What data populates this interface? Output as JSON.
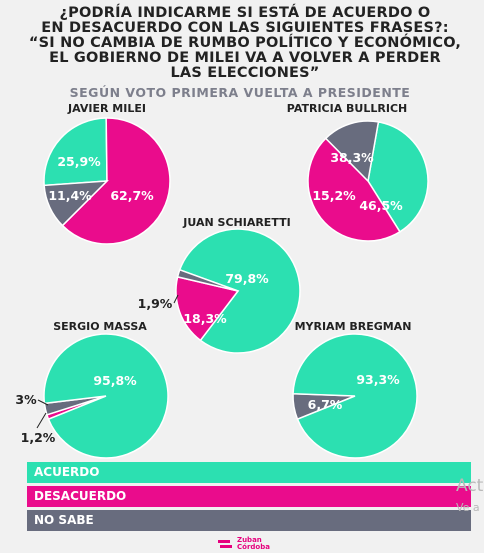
{
  "title_lines": [
    "¿PODRÍA INDICARME SI ESTÁ DE ACUERDO O",
    "EN DESACUERDO CON LAS SIGUIENTES FRASES?:",
    "“SI NO CAMBIA DE RUMBO POLÍTICO Y ECONÓMICO,",
    "EL GOBIERNO DE MILEI VA A VOLVER A PERDER",
    "LAS ELECCIONES”"
  ],
  "subtitle": "SEGÚN VOTO PRIMERA VUELTA A PRESIDENTE",
  "colors": {
    "acuerdo": "#2ce0b1",
    "desacuerdo": "#ea0c8c",
    "no_sabe": "#686c7e"
  },
  "legend": [
    {
      "key": "acuerdo",
      "label": "ACUERDO"
    },
    {
      "key": "desacuerdo",
      "label": "DESACUERDO"
    },
    {
      "key": "no_sabe",
      "label": "NO SABE"
    }
  ],
  "watermark": {
    "line1": "Act",
    "line2": "Ve a"
  },
  "logo": {
    "line1": "Zuban",
    "line2": "Córdoba"
  },
  "chart_data": {
    "type": "pie",
    "categories": [
      "ACUERDO",
      "DESACUERDO",
      "NO SABE"
    ],
    "pies": [
      {
        "name": "JAVIER MILEI",
        "values": [
          25.9,
          62.7,
          11.4
        ],
        "labels": [
          "25,9%",
          "62,7%",
          "11,4%"
        ]
      },
      {
        "name": "PATRICIA BULLRICH",
        "values": [
          38.3,
          46.5,
          15.2
        ],
        "labels": [
          "38,3%",
          "46,5%",
          "15,2%"
        ]
      },
      {
        "name": "JUAN SCHIARETTI",
        "values": [
          79.8,
          18.3,
          1.9
        ],
        "labels": [
          "79,8%",
          "18,3%",
          "1,9%"
        ]
      },
      {
        "name": "SERGIO MASSA",
        "values": [
          95.8,
          1.2,
          3.0
        ],
        "labels": [
          "95,8%",
          "1,2%",
          "3%"
        ]
      },
      {
        "name": "MYRIAM BREGMAN",
        "values": [
          93.3,
          0,
          6.7
        ],
        "labels": [
          "93,3%",
          "",
          "6,7%"
        ]
      }
    ]
  }
}
